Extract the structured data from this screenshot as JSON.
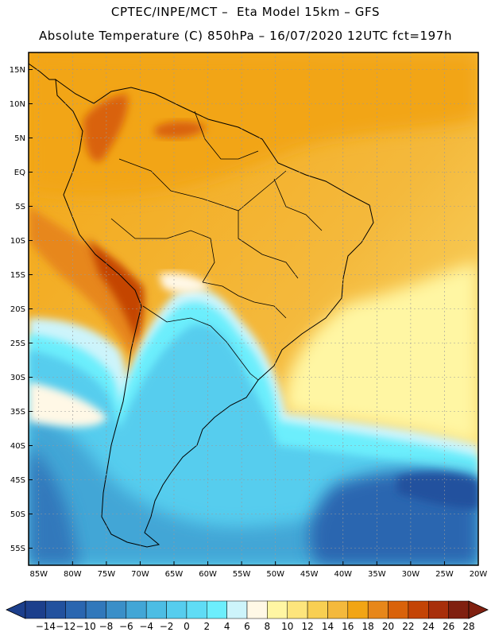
{
  "header": {
    "title_line1": "CPTEC/INPE/MCT –  Eta Model 15km – GFS",
    "title_line2": "Absolute Temperature (C) 850hPa – 16/07/2020 12UTC fct=197h"
  },
  "map": {
    "lat_labels": [
      "15N",
      "10N",
      "5N",
      "EQ",
      "5S",
      "10S",
      "15S",
      "20S",
      "25S",
      "30S",
      "35S",
      "40S",
      "45S",
      "50S",
      "55S"
    ],
    "lon_labels": [
      "85W",
      "80W",
      "75W",
      "70W",
      "65W",
      "60W",
      "55W",
      "50W",
      "45W",
      "40W",
      "35W",
      "30W",
      "25W",
      "20W"
    ],
    "lat_range": [
      17.5,
      -57.5
    ],
    "lon_range": [
      -86.5,
      -20
    ],
    "colors": {
      "background_warm": "#f2a51a",
      "background_cool": "#55ccf0",
      "coastline": "#000000",
      "grid": "#9a9a9a"
    }
  },
  "colorbar": {
    "labels": [
      "-14",
      "-12",
      "-10",
      "-8",
      "-6",
      "-4",
      "-2",
      "0",
      "2",
      "4",
      "6",
      "8",
      "10",
      "12",
      "14",
      "16",
      "18",
      "20",
      "22",
      "24",
      "26",
      "28"
    ],
    "colors": [
      "#1c3f8c",
      "#22519e",
      "#2a66b0",
      "#3178bb",
      "#3a8fc8",
      "#42a6d6",
      "#4cbde4",
      "#56cdee",
      "#5fdcf5",
      "#6ceefc",
      "#cdf4fb",
      "#fff8e6",
      "#fff6a3",
      "#fde57c",
      "#f8cf52",
      "#f4b93c",
      "#f2a514",
      "#e7871a",
      "#d9620a",
      "#c44405",
      "#a82f0b",
      "#802010"
    ]
  }
}
